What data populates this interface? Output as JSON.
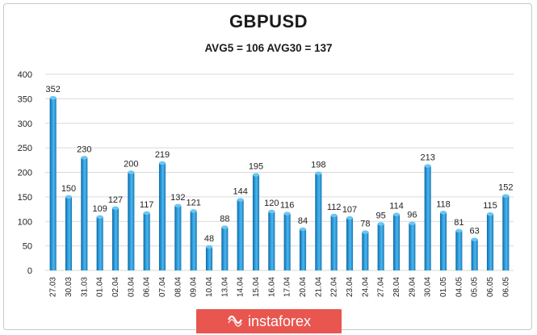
{
  "chart_data": {
    "type": "bar",
    "title": "GBPUSD",
    "subtitle": "AVG5 = 106 AVG30 = 137",
    "categories": [
      "27.03",
      "30.03",
      "31.03",
      "01.04",
      "02.04",
      "03.04",
      "06.04",
      "07.04",
      "08.04",
      "09.04",
      "10.04",
      "13.04",
      "14.04",
      "15.04",
      "16.04",
      "17.04",
      "20.04",
      "21.04",
      "22.04",
      "23.04",
      "24.04",
      "27.04",
      "28.04",
      "29.04",
      "30.04",
      "01.05",
      "04.05",
      "05.05",
      "06.05",
      "06.05"
    ],
    "values": [
      352,
      150,
      230,
      109,
      127,
      200,
      117,
      219,
      132,
      121,
      48,
      88,
      144,
      195,
      120,
      116,
      84,
      198,
      112,
      107,
      78,
      95,
      114,
      96,
      213,
      118,
      81,
      63,
      115,
      152
    ],
    "ylim": [
      0,
      400
    ],
    "yticks": [
      0,
      50,
      100,
      150,
      200,
      250,
      300,
      350,
      400
    ],
    "grid": true,
    "xlabel": "",
    "ylabel": "",
    "colors": {
      "bar_main": "#1f8fd0",
      "bar_light": "#4fb6ec",
      "bar_dark": "#13679c",
      "grid": "#d9d9d9"
    }
  },
  "watermark": {
    "text": "instaforex",
    "icon": "insta-logo-icon"
  }
}
